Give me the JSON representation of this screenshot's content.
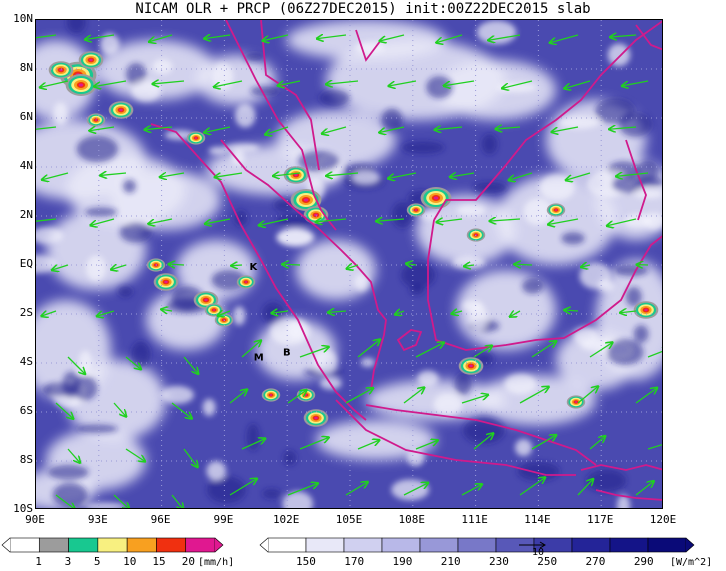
{
  "title": "NICAM OLR + PRCP (06Z27DEC2015) init:00Z22DEC2015 slab",
  "axes": {
    "lat_labels": [
      "10N",
      "8N",
      "6N",
      "4N",
      "2N",
      "EQ",
      "2S",
      "4S",
      "6S",
      "8S",
      "10S"
    ],
    "lon_labels": [
      "90E",
      "93E",
      "96E",
      "99E",
      "102E",
      "105E",
      "108E",
      "111E",
      "114E",
      "117E",
      "120E"
    ]
  },
  "markers": [
    {
      "label": "K",
      "lon": 100.2,
      "lat": -0.2
    },
    {
      "label": "M",
      "lon": 100.4,
      "lat": -3.9
    },
    {
      "label": "B",
      "lon": 101.8,
      "lat": -3.7
    }
  ],
  "precip_colorbar": {
    "ticks": [
      "1",
      "3",
      "5",
      "10",
      "15",
      "20"
    ],
    "unit": "[mm/h]",
    "colors": [
      "#ffffff",
      "#9c9c9c",
      "#18c890",
      "#f8f080",
      "#f8a020",
      "#f03010",
      "#e01890"
    ]
  },
  "olr_colorbar": {
    "ticks": [
      "150",
      "170",
      "190",
      "210",
      "230",
      "250",
      "270",
      "290"
    ],
    "unit": "[W/m^2]",
    "vector_label": "10",
    "colors": [
      "#ffffff",
      "#e8e8f8",
      "#d0d0f0",
      "#b8b8e8",
      "#9898d8",
      "#7878c8",
      "#5858b8",
      "#3c3ca8",
      "#242498",
      "#141488",
      "#0a0a78"
    ]
  },
  "colors": {
    "coastline": "#d01a8c",
    "wind_vector": "#20d020",
    "ocean_deep": "#2a2a9a"
  }
}
